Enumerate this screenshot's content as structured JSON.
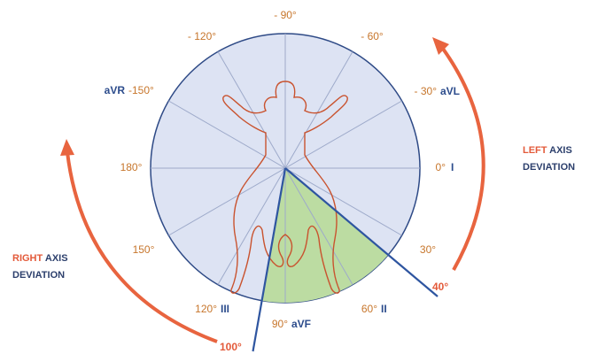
{
  "angle_labels": [
    "- 90°",
    "- 60°",
    "- 30°",
    "0°",
    "30°",
    "60°",
    "90°",
    "120°",
    "150°",
    "180°",
    "-150°",
    "- 120°"
  ],
  "lead_labels": [
    "aVL",
    "I",
    "II",
    "aVF",
    "III",
    "aVR"
  ],
  "normal_range_labels": [
    "40°",
    "100°"
  ],
  "left_deviation": {
    "word1": "LEFT",
    "word2": "AXIS",
    "word3": "DEVIATION"
  },
  "right_deviation": {
    "word1": "RIGHT",
    "word2": "AXIS",
    "word3": "DEVIATION"
  }
}
